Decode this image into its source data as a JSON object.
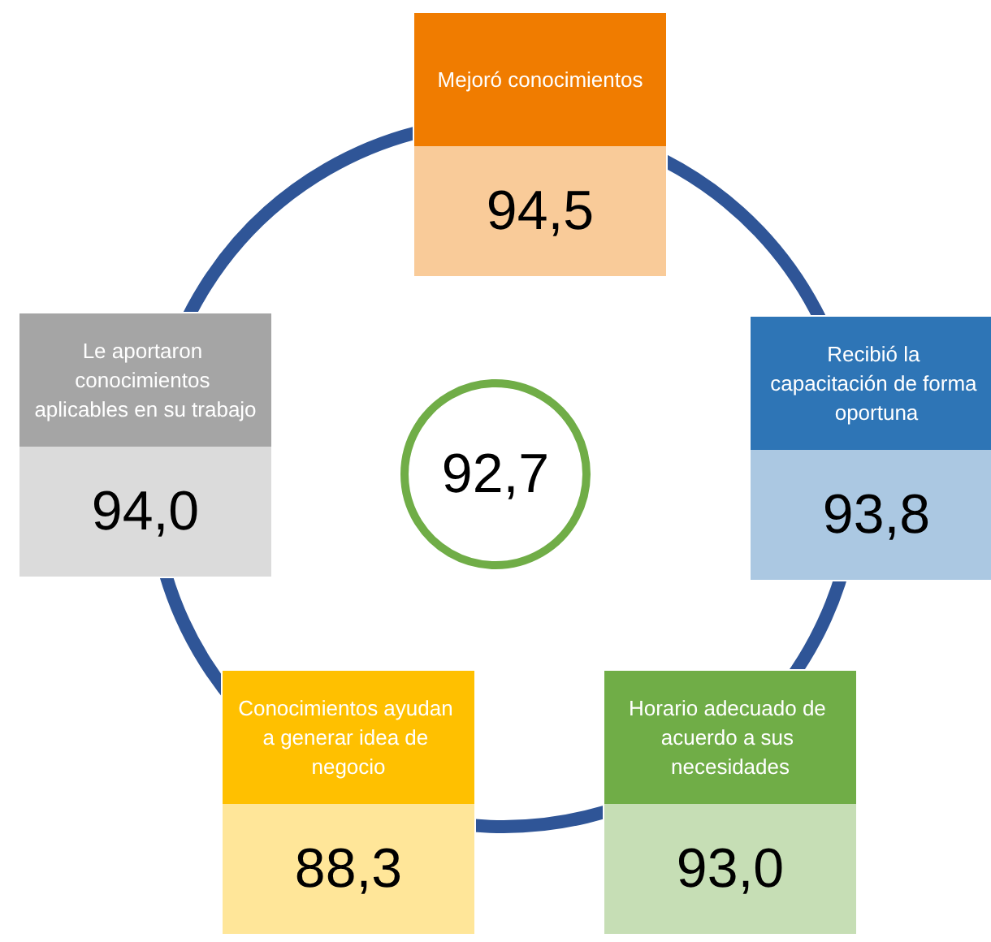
{
  "chart_data": {
    "type": "other",
    "categories": [
      "Mejoró conocimientos",
      "Recibió la capacitación de forma oportuna",
      "Horario adecuado de acuerdo a sus necesidades",
      "Conocimientos ayudan a generar idea de negocio",
      "Le aportaron conocimientos aplicables en su trabajo"
    ],
    "values": [
      94.5,
      93.8,
      93.0,
      88.3,
      94.0
    ],
    "value_labels": [
      "94,5",
      "93,8",
      "93,0",
      "88,3",
      "94,0"
    ],
    "colors": [
      "#f07c00",
      "#2e75b6",
      "#70ad47",
      "#ffc000",
      "#a5a5a5"
    ],
    "annotations": [
      "92,7"
    ]
  }
}
